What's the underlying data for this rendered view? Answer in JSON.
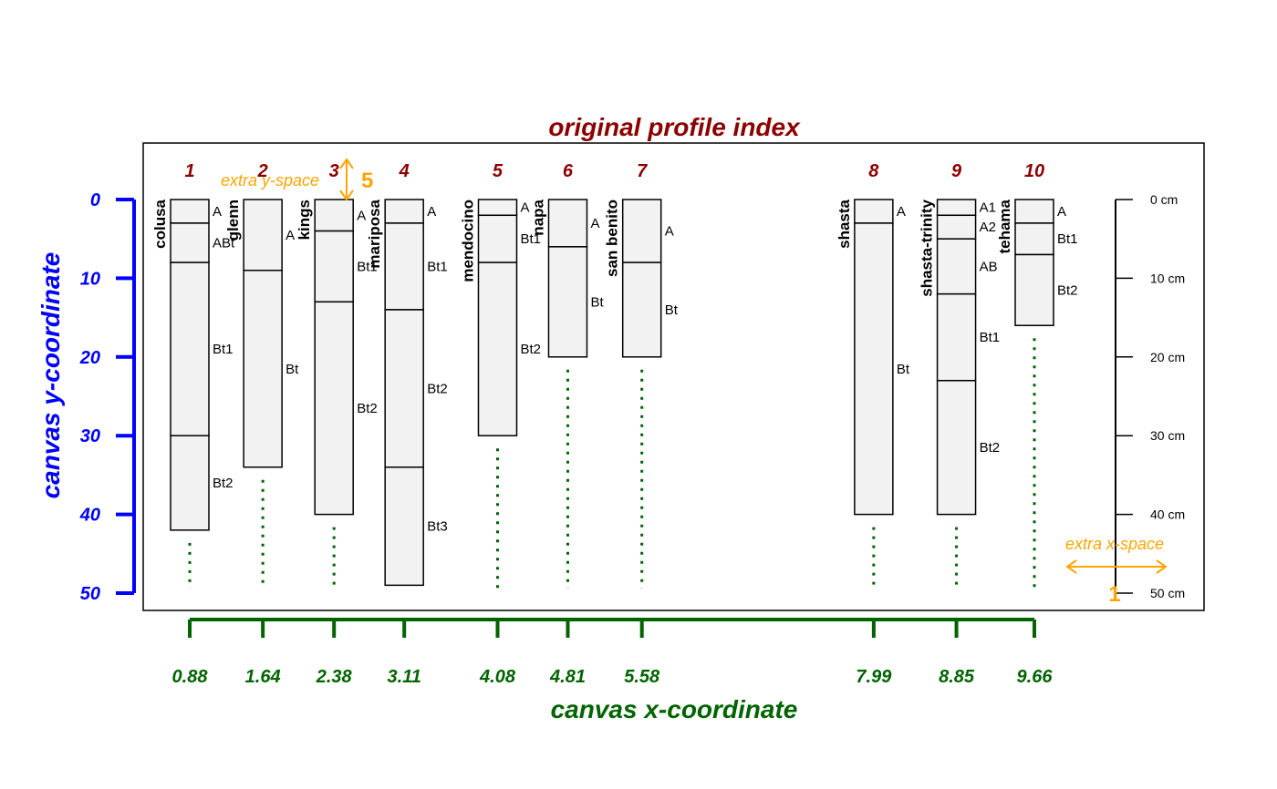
{
  "title": "original profile index",
  "xlabel": "canvas x-coordinate",
  "ylabel": "canvas y-coordinate",
  "colors": {
    "title": "#8b0000",
    "index": "#8b0000",
    "xaxis": "#006400",
    "yaxis": "#0000ff",
    "extra": "#ffa500",
    "box_fill": "#f2f2f2",
    "line": "#000000"
  },
  "y_axis_ticks": [
    "0",
    "10",
    "20",
    "30",
    "40",
    "50"
  ],
  "depth_scale_ticks": [
    "0 cm",
    "10 cm",
    "20 cm",
    "30 cm",
    "40 cm",
    "50 cm"
  ],
  "extra_y": {
    "label": "extra y-space",
    "value": "5"
  },
  "extra_x": {
    "label": "extra x-space",
    "value": "1"
  },
  "profiles": [
    {
      "index": "1",
      "name": "colusa",
      "x": 0.88,
      "x_label": "0.88",
      "horizons": [
        {
          "name": "A",
          "top": 0,
          "bottom": 3
        },
        {
          "name": "ABt",
          "top": 3,
          "bottom": 8
        },
        {
          "name": "Bt1",
          "top": 8,
          "bottom": 30
        },
        {
          "name": "Bt2",
          "top": 30,
          "bottom": 42
        }
      ]
    },
    {
      "index": "2",
      "name": "glenn",
      "x": 1.64,
      "x_label": "1.64",
      "horizons": [
        {
          "name": "A",
          "top": 0,
          "bottom": 9
        },
        {
          "name": "Bt",
          "top": 9,
          "bottom": 34
        }
      ]
    },
    {
      "index": "3",
      "name": "kings",
      "x": 2.38,
      "x_label": "2.38",
      "horizons": [
        {
          "name": "A",
          "top": 0,
          "bottom": 4
        },
        {
          "name": "Bt1",
          "top": 4,
          "bottom": 13
        },
        {
          "name": "Bt2",
          "top": 13,
          "bottom": 40
        }
      ]
    },
    {
      "index": "4",
      "name": "mariposa",
      "x": 3.11,
      "x_label": "3.11",
      "horizons": [
        {
          "name": "A",
          "top": 0,
          "bottom": 3
        },
        {
          "name": "Bt1",
          "top": 3,
          "bottom": 14
        },
        {
          "name": "Bt2",
          "top": 14,
          "bottom": 34
        },
        {
          "name": "Bt3",
          "top": 34,
          "bottom": 49
        }
      ]
    },
    {
      "index": "5",
      "name": "mendocino",
      "x": 4.08,
      "x_label": "4.08",
      "horizons": [
        {
          "name": "A",
          "top": 0,
          "bottom": 2
        },
        {
          "name": "Bt1",
          "top": 2,
          "bottom": 8
        },
        {
          "name": "Bt2",
          "top": 8,
          "bottom": 30
        }
      ]
    },
    {
      "index": "6",
      "name": "napa",
      "x": 4.81,
      "x_label": "4.81",
      "horizons": [
        {
          "name": "A",
          "top": 0,
          "bottom": 6
        },
        {
          "name": "Bt",
          "top": 6,
          "bottom": 20
        }
      ]
    },
    {
      "index": "7",
      "name": "san benito",
      "x": 5.58,
      "x_label": "5.58",
      "horizons": [
        {
          "name": "A",
          "top": 0,
          "bottom": 8
        },
        {
          "name": "Bt",
          "top": 8,
          "bottom": 20
        }
      ]
    },
    {
      "index": "8",
      "name": "shasta",
      "x": 7.99,
      "x_label": "7.99",
      "horizons": [
        {
          "name": "A",
          "top": 0,
          "bottom": 3
        },
        {
          "name": "Bt",
          "top": 3,
          "bottom": 40
        }
      ]
    },
    {
      "index": "9",
      "name": "shasta-trinity",
      "x": 8.85,
      "x_label": "8.85",
      "horizons": [
        {
          "name": "A1",
          "top": 0,
          "bottom": 2
        },
        {
          "name": "A2",
          "top": 2,
          "bottom": 5
        },
        {
          "name": "AB",
          "top": 5,
          "bottom": 12
        },
        {
          "name": "Bt1",
          "top": 12,
          "bottom": 23
        },
        {
          "name": "Bt2",
          "top": 23,
          "bottom": 40
        }
      ]
    },
    {
      "index": "10",
      "name": "tehama",
      "x": 9.66,
      "x_label": "9.66",
      "horizons": [
        {
          "name": "A",
          "top": 0,
          "bottom": 3
        },
        {
          "name": "Bt1",
          "top": 3,
          "bottom": 7
        },
        {
          "name": "Bt2",
          "top": 7,
          "bottom": 16
        }
      ]
    }
  ]
}
